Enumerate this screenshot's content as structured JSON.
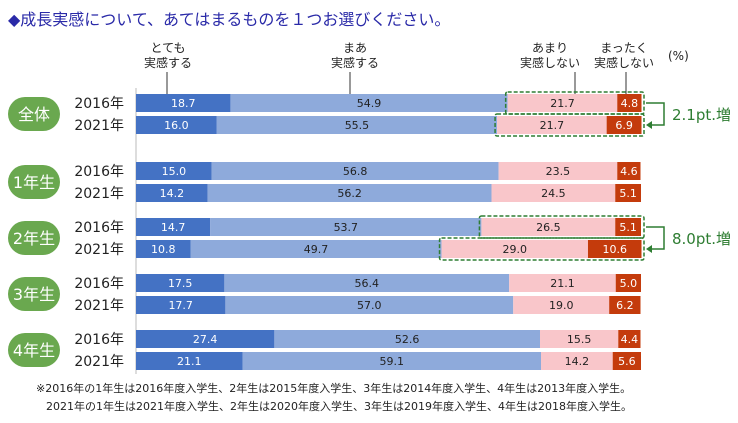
{
  "title": "◆成長実感について、あてはまるものを１つお選びください。",
  "chart_data": {
    "type": "bar",
    "orientation": "horizontal-stacked-100",
    "unit": "(%)",
    "legend": [
      "とても\n実感する",
      "まあ\n実感する",
      "あまり\n実感しない",
      "まったく\n実感しない"
    ],
    "colors": [
      "#4472c4",
      "#8eaadb",
      "#f9c6ca",
      "#c43b0c"
    ],
    "groups": [
      {
        "name": "全体",
        "rows": [
          {
            "year": "2016年",
            "values": [
              18.7,
              54.9,
              21.7,
              4.8
            ]
          },
          {
            "year": "2021年",
            "values": [
              16.0,
              55.5,
              21.7,
              6.9
            ]
          }
        ]
      },
      {
        "name": "1年生",
        "rows": [
          {
            "year": "2016年",
            "values": [
              15.0,
              56.8,
              23.5,
              4.6
            ]
          },
          {
            "year": "2021年",
            "values": [
              14.2,
              56.2,
              24.5,
              5.1
            ]
          }
        ]
      },
      {
        "name": "2年生",
        "rows": [
          {
            "year": "2016年",
            "values": [
              14.7,
              53.7,
              26.5,
              5.1
            ]
          },
          {
            "year": "2021年",
            "values": [
              10.8,
              49.7,
              29.0,
              10.6
            ]
          }
        ]
      },
      {
        "name": "3年生",
        "rows": [
          {
            "year": "2016年",
            "values": [
              17.5,
              56.4,
              21.1,
              5.0
            ]
          },
          {
            "year": "2021年",
            "values": [
              17.7,
              57.0,
              19.0,
              6.2
            ]
          }
        ]
      },
      {
        "name": "4年生",
        "rows": [
          {
            "year": "2016年",
            "values": [
              27.4,
              52.6,
              15.5,
              4.4
            ]
          },
          {
            "year": "2021年",
            "values": [
              21.1,
              59.1,
              14.2,
              5.6
            ]
          }
        ]
      }
    ],
    "annotations": [
      {
        "group": "全体",
        "text": "2.1pt.増"
      },
      {
        "group": "2年生",
        "text": "8.0pt.増"
      }
    ],
    "group_color": "#6aa84f",
    "annotation_color": "#2e7d32"
  },
  "notes": [
    "※2016年の1年生は2016年度入学生、2年生は2015年度入学生、3年生は2014年度入学生、4年生は2013年度入学生。",
    "2021年の1年生は2021年度入学生、2年生は2020年度入学生、3年生は2019年度入学生、4年生は2018年度入学生。"
  ]
}
